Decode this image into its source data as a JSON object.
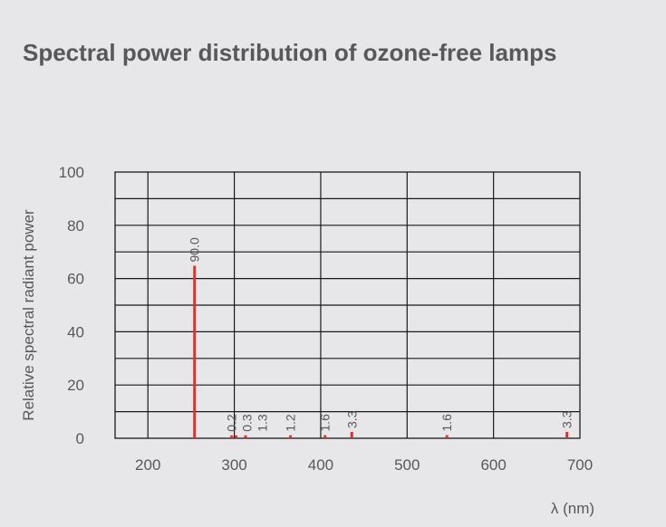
{
  "chart_data": {
    "type": "bar",
    "title": "Spectral power distribution of ozone-free lamps",
    "xlabel": "λ (nm)",
    "ylabel": "Relative spectral radiant power",
    "xlim": [
      162,
      700
    ],
    "ylim": [
      0,
      100
    ],
    "xticks": [
      200,
      300,
      400,
      500,
      600,
      700
    ],
    "yticks": [
      0,
      20,
      40,
      60,
      80,
      100
    ],
    "grid": true,
    "bar_color": "#e0302a",
    "x": [
      254,
      297,
      302,
      313,
      365,
      405,
      436,
      546,
      685
    ],
    "values": [
      90.0,
      0.2,
      0.3,
      1.3,
      1.2,
      1.6,
      3.3,
      1.6,
      3.3
    ],
    "labels": [
      "90.0",
      "0.2",
      "0.3",
      "1.3",
      "1.2",
      "1.6",
      "3.3",
      "1.6",
      "3.3"
    ]
  }
}
